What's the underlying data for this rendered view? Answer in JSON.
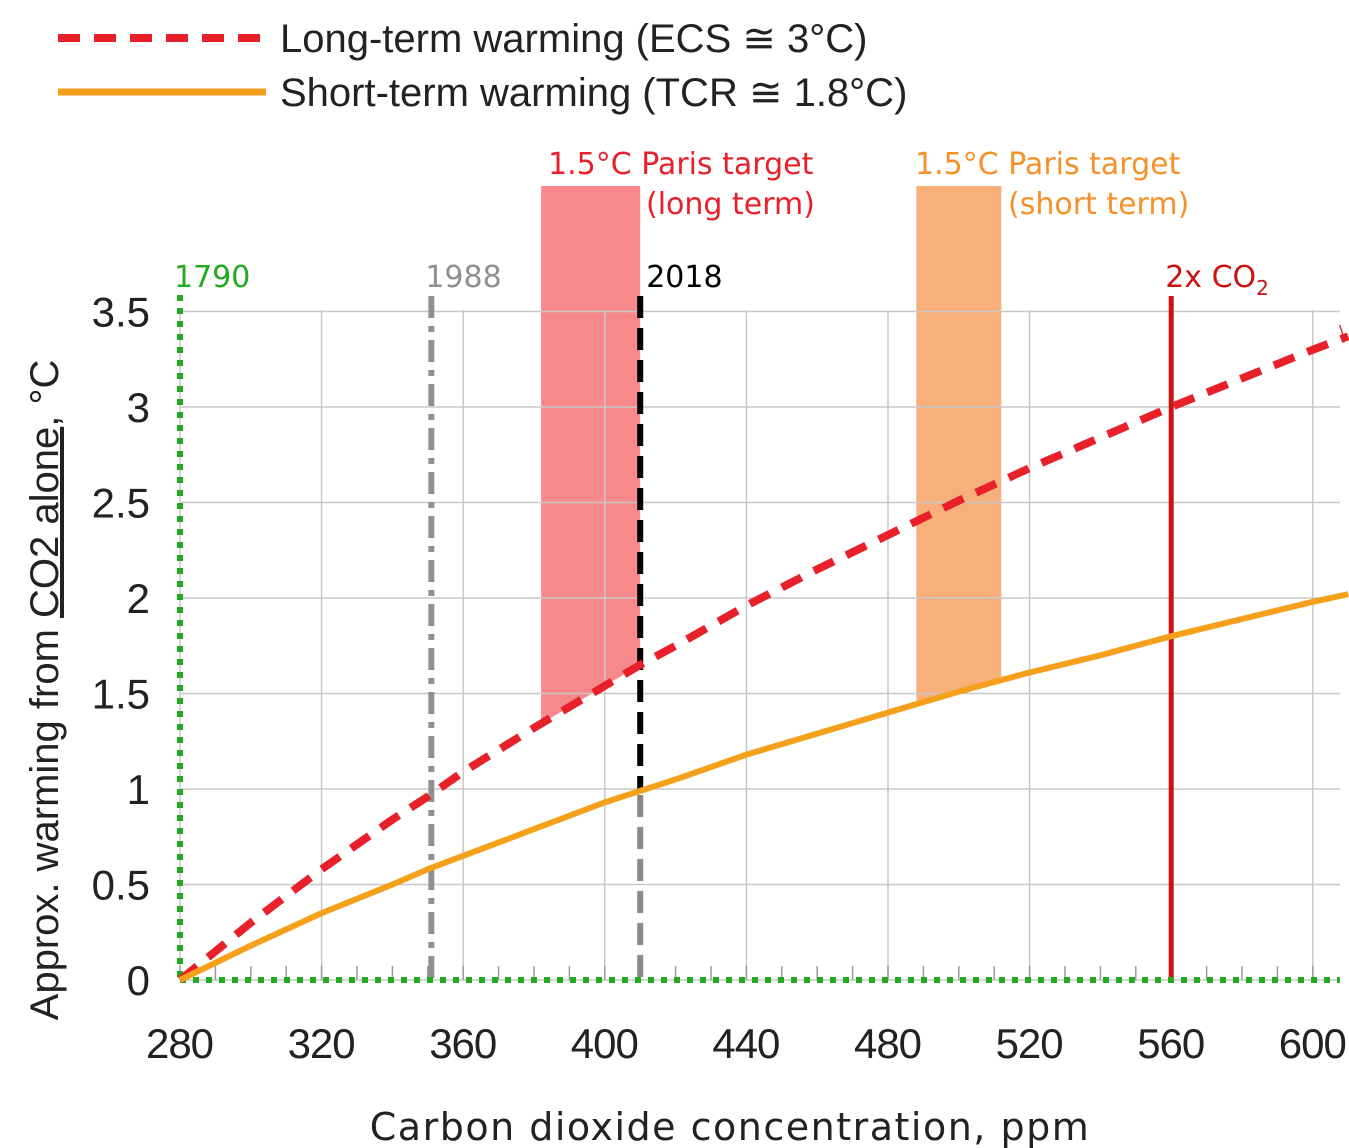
{
  "chart_data": {
    "type": "line",
    "xlabel": "Carbon dioxide concentration, ppm",
    "ylabel_parts": [
      "Approx. warming from ",
      "CO2 alone",
      ", °C"
    ],
    "xlim": [
      280,
      610
    ],
    "ylim": [
      0,
      3.5
    ],
    "x_ticks": [
      280,
      320,
      360,
      400,
      440,
      480,
      520,
      560,
      600
    ],
    "y_ticks": [
      0,
      0.5,
      1,
      1.5,
      2,
      2.5,
      3,
      3.5
    ],
    "y_tick_labels": [
      "0",
      "0.5",
      "1",
      "1.5",
      "2",
      "2.5",
      "3",
      "3.5"
    ],
    "grid": true,
    "legend_position": "top-left",
    "series": [
      {
        "name": "Long-term warming (ECS ≅ 3°C)",
        "color": "#e8202a",
        "style": "dashed",
        "sensitivity": 3.0,
        "x": [
          280,
          300,
          320,
          340,
          350,
          360,
          380,
          400,
          410,
          420,
          440,
          460,
          480,
          500,
          520,
          540,
          560,
          580,
          600,
          610
        ],
        "y": [
          0,
          0.3,
          0.58,
          0.84,
          0.96,
          1.09,
          1.32,
          1.54,
          1.65,
          1.75,
          1.96,
          2.15,
          2.33,
          2.51,
          2.68,
          2.84,
          3.0,
          3.15,
          3.3,
          3.37
        ]
      },
      {
        "name": "Short-term warming (TCR ≅ 1.8°C)",
        "color": "#f5a01a",
        "style": "solid",
        "sensitivity": 1.8,
        "x": [
          280,
          300,
          320,
          340,
          350,
          360,
          380,
          400,
          410,
          420,
          440,
          460,
          480,
          500,
          520,
          540,
          560,
          580,
          600,
          610
        ],
        "y": [
          0,
          0.18,
          0.35,
          0.5,
          0.58,
          0.65,
          0.79,
          0.93,
          0.99,
          1.05,
          1.18,
          1.29,
          1.4,
          1.51,
          1.61,
          1.7,
          1.8,
          1.89,
          1.98,
          2.02
        ]
      }
    ],
    "vertical_markers": [
      {
        "label": "1790",
        "x": 280,
        "color": "#22aa22",
        "style": "dotted"
      },
      {
        "label": "1988",
        "x": 351,
        "color": "#909090",
        "style": "dashdot"
      },
      {
        "label": "2018",
        "x": 410,
        "color": "#000000",
        "style": "dashed-split",
        "split_y": 1.0,
        "lower_color": "#888888"
      },
      {
        "label": "2x CO",
        "sub": "2",
        "x": 560,
        "color": "#cc1111",
        "style": "solid"
      }
    ],
    "zero_line": {
      "color": "#22aa22",
      "style": "dotted"
    },
    "bands": [
      {
        "label": [
          "1.5°C Paris target",
          "(long term)"
        ],
        "x0": 382,
        "x1": 410,
        "label_color": "#e8202a",
        "fill": "#f7898c"
      },
      {
        "label": [
          "1.5°C Paris target",
          "(short term)"
        ],
        "x0": 488,
        "x1": 512,
        "label_color": "#f5912a",
        "fill": "#f8b07a"
      }
    ],
    "clip_mark": "\\"
  }
}
